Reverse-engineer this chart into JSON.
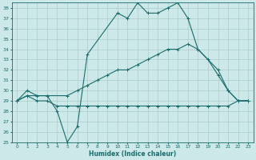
{
  "xlabel": "Humidex (Indice chaleur)",
  "xlim": [
    -0.5,
    23.5
  ],
  "ylim": [
    25,
    38.5
  ],
  "yticks": [
    25,
    26,
    27,
    28,
    29,
    30,
    31,
    32,
    33,
    34,
    35,
    36,
    37,
    38
  ],
  "xticks": [
    0,
    1,
    2,
    3,
    4,
    5,
    6,
    7,
    8,
    9,
    10,
    11,
    12,
    13,
    14,
    15,
    16,
    17,
    18,
    19,
    20,
    21,
    22,
    23
  ],
  "bg_color": "#cde8e8",
  "grid_color": "#b0d8d8",
  "line_color": "#1a6b6b",
  "line1_x": [
    0,
    1,
    2,
    3,
    4,
    5,
    6,
    7,
    10,
    11,
    12,
    13,
    14,
    15,
    16,
    17,
    18,
    20,
    21,
    22,
    23
  ],
  "line1_y": [
    29,
    30,
    29.5,
    29.5,
    28,
    25,
    26.5,
    33.5,
    37.5,
    37,
    38.5,
    37.5,
    37.5,
    38,
    38.5,
    37,
    34,
    32,
    30,
    29,
    29
  ],
  "line2_x": [
    0,
    1,
    2,
    3,
    5,
    6,
    7,
    8,
    9,
    10,
    11,
    12,
    13,
    14,
    15,
    16,
    17,
    18,
    19,
    20,
    21,
    22,
    23
  ],
  "line2_y": [
    29,
    29.5,
    29.5,
    29.5,
    29.5,
    30,
    30.5,
    31,
    31.5,
    32,
    32,
    32.5,
    33,
    33.5,
    34,
    34,
    34.5,
    34,
    33,
    31.5,
    30,
    29,
    29
  ],
  "line3_x": [
    0,
    1,
    2,
    3,
    4,
    5,
    6,
    7,
    8,
    9,
    10,
    11,
    12,
    13,
    14,
    15,
    16,
    17,
    18,
    19,
    20,
    21,
    22,
    23
  ],
  "line3_y": [
    29,
    29.5,
    29,
    29,
    28.5,
    28.5,
    28.5,
    28.5,
    28.5,
    28.5,
    28.5,
    28.5,
    28.5,
    28.5,
    28.5,
    28.5,
    28.5,
    28.5,
    28.5,
    28.5,
    28.5,
    28.5,
    29,
    29
  ]
}
